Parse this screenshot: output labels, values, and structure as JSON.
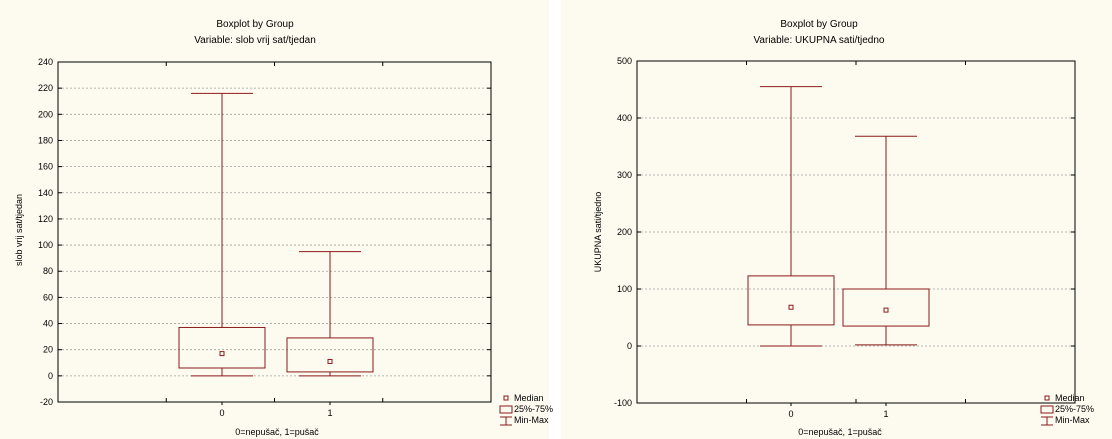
{
  "chart_data": [
    {
      "type": "boxplot",
      "title": "Boxplot by Group",
      "subtitle": "Variable: slob vrij sat/tjedan",
      "xlabel": "0=nepušač, 1=pušač",
      "ylabel": "slob vrij sat/tjedan",
      "ylim": [
        -20,
        240
      ],
      "yticks": [
        -20,
        0,
        20,
        40,
        60,
        80,
        100,
        120,
        140,
        160,
        180,
        200,
        220,
        240
      ],
      "categories": [
        "0",
        "1"
      ],
      "boxes": [
        {
          "category": "0",
          "min": 0,
          "q1": 6,
          "median": 17,
          "q3": 37,
          "max": 216
        },
        {
          "category": "1",
          "min": 0,
          "q1": 3,
          "median": 11,
          "q3": 29,
          "max": 95
        }
      ],
      "grid": true,
      "legend": {
        "position": "bottom-right",
        "entries": [
          "Median",
          "25%-75%",
          "Min-Max"
        ]
      }
    },
    {
      "type": "boxplot",
      "title": "Boxplot by Group",
      "subtitle": "Variable: UKUPNA sati/tjedno",
      "xlabel": "0=nepušač, 1=pušač",
      "ylabel": "UKUPNA sati/tjedno",
      "ylim": [
        -100,
        500
      ],
      "yticks": [
        -100,
        0,
        100,
        200,
        300,
        400,
        500
      ],
      "categories": [
        "0",
        "1"
      ],
      "boxes": [
        {
          "category": "0",
          "min": 0,
          "q1": 37,
          "median": 68,
          "q3": 123,
          "max": 455
        },
        {
          "category": "1",
          "min": 2,
          "q1": 35,
          "median": 63,
          "q3": 100,
          "max": 368
        }
      ],
      "grid": true,
      "legend": {
        "position": "bottom-right",
        "entries": [
          "Median",
          "25%-75%",
          "Min-Max"
        ]
      }
    }
  ],
  "colors": {
    "box": "#8b1a1a",
    "background": "#fdfbf0",
    "grid": "#a0a0a0",
    "axis": "#000000"
  }
}
